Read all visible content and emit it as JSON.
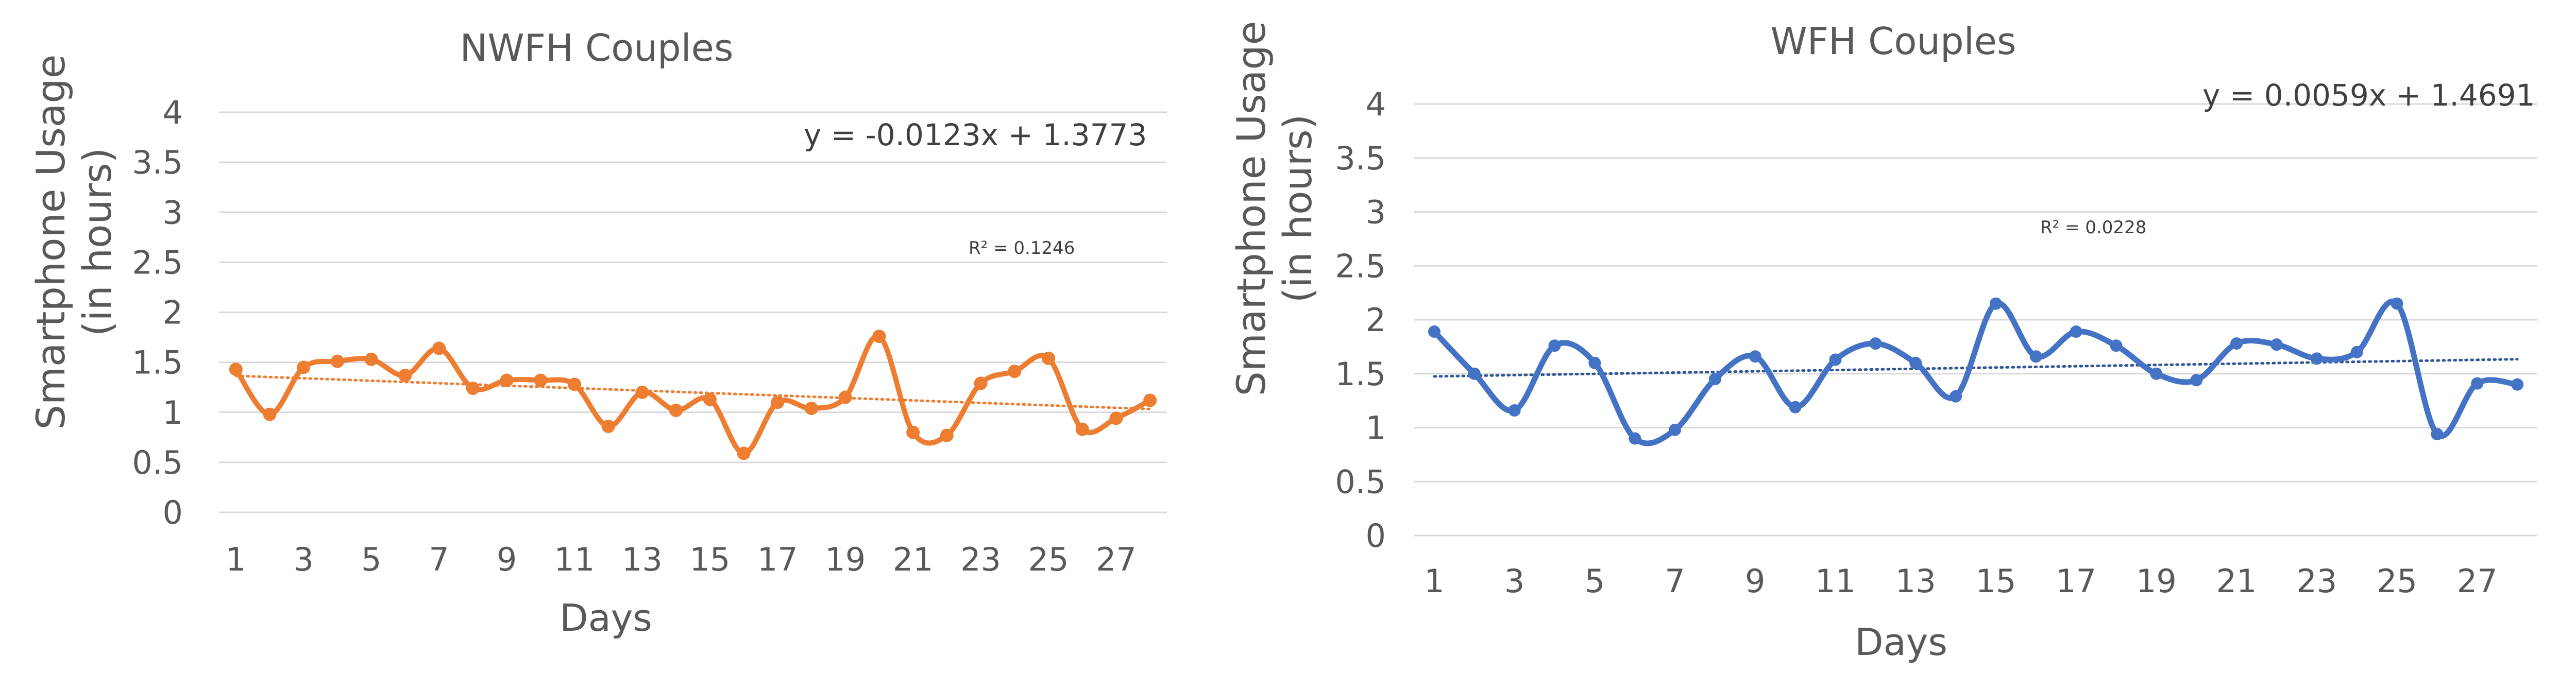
{
  "chart_data": [
    {
      "type": "line",
      "title": "NWFH Couples",
      "xlabel": "Days",
      "ylabel_lines": [
        "Smartphone Usage",
        "(in hours)"
      ],
      "x": [
        1,
        2,
        3,
        4,
        5,
        6,
        7,
        8,
        9,
        10,
        11,
        12,
        13,
        14,
        15,
        16,
        17,
        18,
        19,
        20,
        21,
        22,
        23,
        24,
        25,
        26,
        27,
        28
      ],
      "x_tick_labels": [
        "1",
        "3",
        "5",
        "7",
        "9",
        "11",
        "13",
        "15",
        "17",
        "19",
        "21",
        "23",
        "25",
        "27"
      ],
      "y_tick_labels": [
        "0",
        "0.5",
        "1",
        "1.5",
        "2",
        "2.5",
        "3",
        "3.5",
        "4"
      ],
      "ylim": [
        0,
        4
      ],
      "series": [
        {
          "color": "#ED7D31",
          "smooth": true,
          "values": [
            1.43,
            0.98,
            1.45,
            1.51,
            1.53,
            1.37,
            1.64,
            1.24,
            1.32,
            1.32,
            1.28,
            0.86,
            1.2,
            1.02,
            1.13,
            0.59,
            1.1,
            1.04,
            1.15,
            1.76,
            0.8,
            0.77,
            1.29,
            1.41,
            1.54,
            0.83,
            0.94,
            1.12
          ]
        }
      ],
      "trendline": {
        "slope": -0.0123,
        "intercept": 1.3773,
        "color": "#ED7D31",
        "style": "dotted"
      },
      "equation_text": "y = -0.0123x + 1.3773",
      "r2_text": "R² = 0.1246",
      "grid": true,
      "legend": "none"
    },
    {
      "type": "line",
      "title": "WFH Couples",
      "xlabel": "Days",
      "ylabel_lines": [
        "Smartphone Usage",
        "(in hours)"
      ],
      "x": [
        1,
        2,
        3,
        4,
        5,
        6,
        7,
        8,
        9,
        10,
        11,
        12,
        13,
        14,
        15,
        16,
        17,
        18,
        19,
        20,
        21,
        22,
        23,
        24,
        25,
        26,
        27,
        28
      ],
      "x_tick_labels": [
        "1",
        "3",
        "5",
        "7",
        "9",
        "11",
        "13",
        "15",
        "17",
        "19",
        "21",
        "23",
        "25",
        "27"
      ],
      "y_tick_labels": [
        "0",
        "0.5",
        "1",
        "1.5",
        "2",
        "2.5",
        "3",
        "3.5",
        "4"
      ],
      "ylim": [
        0,
        4
      ],
      "series": [
        {
          "color": "#4472C4",
          "smooth": true,
          "values": [
            1.89,
            1.5,
            1.16,
            1.76,
            1.6,
            0.9,
            0.98,
            1.45,
            1.66,
            1.19,
            1.63,
            1.78,
            1.6,
            1.29,
            2.15,
            1.66,
            1.89,
            1.76,
            1.5,
            1.44,
            1.78,
            1.77,
            1.64,
            1.7,
            2.15,
            0.94,
            1.41,
            1.4
          ]
        }
      ],
      "trendline": {
        "slope": 0.0059,
        "intercept": 1.4691,
        "color": "#2F5597",
        "style": "dotted"
      },
      "equation_text": "y = 0.0059x + 1.4691",
      "r2_text": "R² = 0.0228",
      "grid": true,
      "legend": "none"
    }
  ]
}
